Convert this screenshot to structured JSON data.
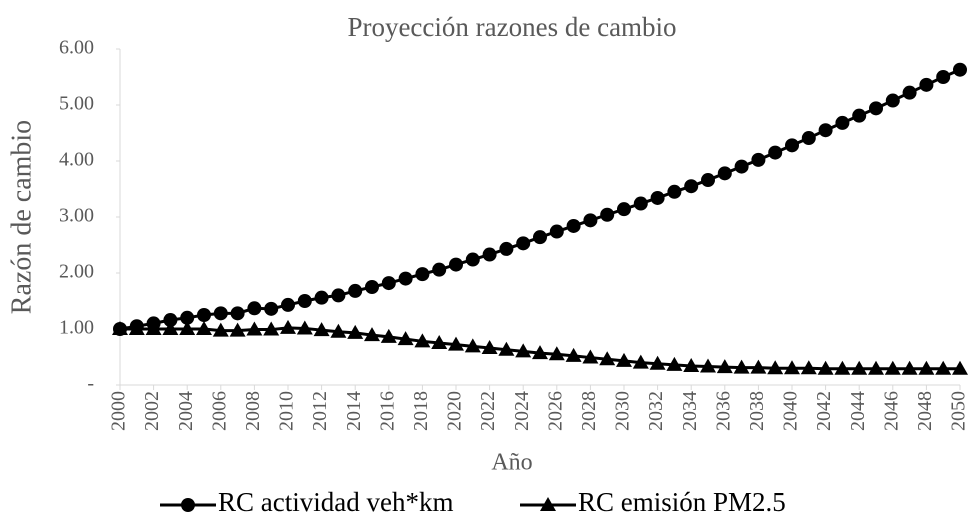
{
  "chart_data": {
    "type": "line",
    "title": "Proyección razones de cambio",
    "xlabel": "Año",
    "ylabel": "Razón de cambio",
    "x": [
      2000,
      2001,
      2002,
      2003,
      2004,
      2005,
      2006,
      2007,
      2008,
      2009,
      2010,
      2011,
      2012,
      2013,
      2014,
      2015,
      2016,
      2017,
      2018,
      2019,
      2020,
      2021,
      2022,
      2023,
      2024,
      2025,
      2026,
      2027,
      2028,
      2029,
      2030,
      2031,
      2032,
      2033,
      2034,
      2035,
      2036,
      2037,
      2038,
      2039,
      2040,
      2041,
      2042,
      2043,
      2044,
      2045,
      2046,
      2047,
      2048,
      2049,
      2050
    ],
    "series": [
      {
        "name": "RC actividad veh*km",
        "color": "#000000",
        "marker": "circle",
        "values": [
          1.0,
          1.05,
          1.1,
          1.16,
          1.2,
          1.25,
          1.28,
          1.28,
          1.37,
          1.36,
          1.43,
          1.5,
          1.56,
          1.6,
          1.68,
          1.75,
          1.82,
          1.9,
          1.98,
          2.06,
          2.15,
          2.24,
          2.33,
          2.43,
          2.53,
          2.64,
          2.74,
          2.84,
          2.94,
          3.04,
          3.14,
          3.24,
          3.34,
          3.45,
          3.55,
          3.66,
          3.78,
          3.9,
          4.02,
          4.15,
          4.28,
          4.41,
          4.55,
          4.68,
          4.81,
          4.94,
          5.08,
          5.22,
          5.36,
          5.5,
          5.63
        ]
      },
      {
        "name": "RC emisión PM2.5",
        "color": "#000000",
        "marker": "triangle",
        "values": [
          1.0,
          1.0,
          1.0,
          1.0,
          1.0,
          1.0,
          0.97,
          0.97,
          0.99,
          0.99,
          1.02,
          1.01,
          0.98,
          0.95,
          0.93,
          0.89,
          0.86,
          0.82,
          0.78,
          0.75,
          0.72,
          0.69,
          0.66,
          0.63,
          0.6,
          0.57,
          0.55,
          0.52,
          0.49,
          0.46,
          0.43,
          0.4,
          0.38,
          0.36,
          0.34,
          0.33,
          0.32,
          0.31,
          0.31,
          0.3,
          0.3,
          0.3,
          0.29,
          0.29,
          0.29,
          0.29,
          0.29,
          0.29,
          0.29,
          0.29,
          0.29
        ]
      }
    ],
    "xlim": [
      2000,
      2050
    ],
    "xticks": [
      2000,
      2002,
      2004,
      2006,
      2008,
      2010,
      2012,
      2014,
      2016,
      2018,
      2020,
      2022,
      2024,
      2026,
      2028,
      2030,
      2032,
      2034,
      2036,
      2038,
      2040,
      2042,
      2044,
      2046,
      2048,
      2050
    ],
    "ylim": [
      0,
      6
    ],
    "yticks": [
      {
        "value": 0,
        "label": "-"
      },
      {
        "value": 1,
        "label": "1.00"
      },
      {
        "value": 2,
        "label": "2.00"
      },
      {
        "value": 3,
        "label": "3.00"
      },
      {
        "value": 4,
        "label": "4.00"
      },
      {
        "value": 5,
        "label": "5.00"
      },
      {
        "value": 6,
        "label": "6.00"
      }
    ],
    "grid": false,
    "legend": "bottom"
  }
}
